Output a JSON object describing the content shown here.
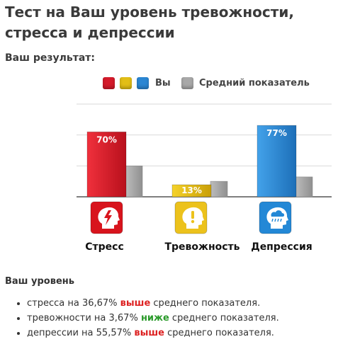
{
  "page": {
    "title": "Тест на Ваш уровень тревожности, стресса и депрессии",
    "result_label": "Ваш результат:"
  },
  "legend": {
    "you_label": "Вы",
    "avg_label": "Средний показатель",
    "you_colors": [
      "#d41a2a",
      "#e2be16",
      "#2b86d3"
    ],
    "avg_color": "#a8a8a8"
  },
  "chart_data": {
    "type": "bar",
    "categories": [
      "Стресс",
      "Тревожность",
      "Депрессия"
    ],
    "series": [
      {
        "name": "Вы",
        "values": [
          70,
          13,
          77
        ]
      },
      {
        "name": "Средний показатель",
        "values": [
          33.33,
          16.67,
          21.43
        ]
      }
    ],
    "data_labels": [
      "70%",
      "13%",
      "77%"
    ],
    "ylim": [
      0,
      100
    ],
    "grid": true,
    "legend_position": "top",
    "colors": {
      "you": [
        "#e0222f",
        "#e8c11a",
        "#2c8ad6"
      ],
      "avg": "#a9a9a9",
      "icons": [
        "#d8141d",
        "#ecc21c",
        "#2388d6"
      ]
    },
    "icons": [
      "stress-head-lightning-icon",
      "anxiety-head-exclamation-icon",
      "depression-head-cloud-icon"
    ]
  },
  "level": {
    "title": "Ваш уровень",
    "items": [
      {
        "pre": "стресса на 36,67% ",
        "word": "выше",
        "post": " среднего показателя.",
        "kind": "above"
      },
      {
        "pre": "тревожности на 3,67% ",
        "word": "ниже",
        "post": " среднего показателя.",
        "kind": "below"
      },
      {
        "pre": "депрессии на 55,57% ",
        "word": "выше",
        "post": " среднего показателя.",
        "kind": "above"
      }
    ]
  }
}
